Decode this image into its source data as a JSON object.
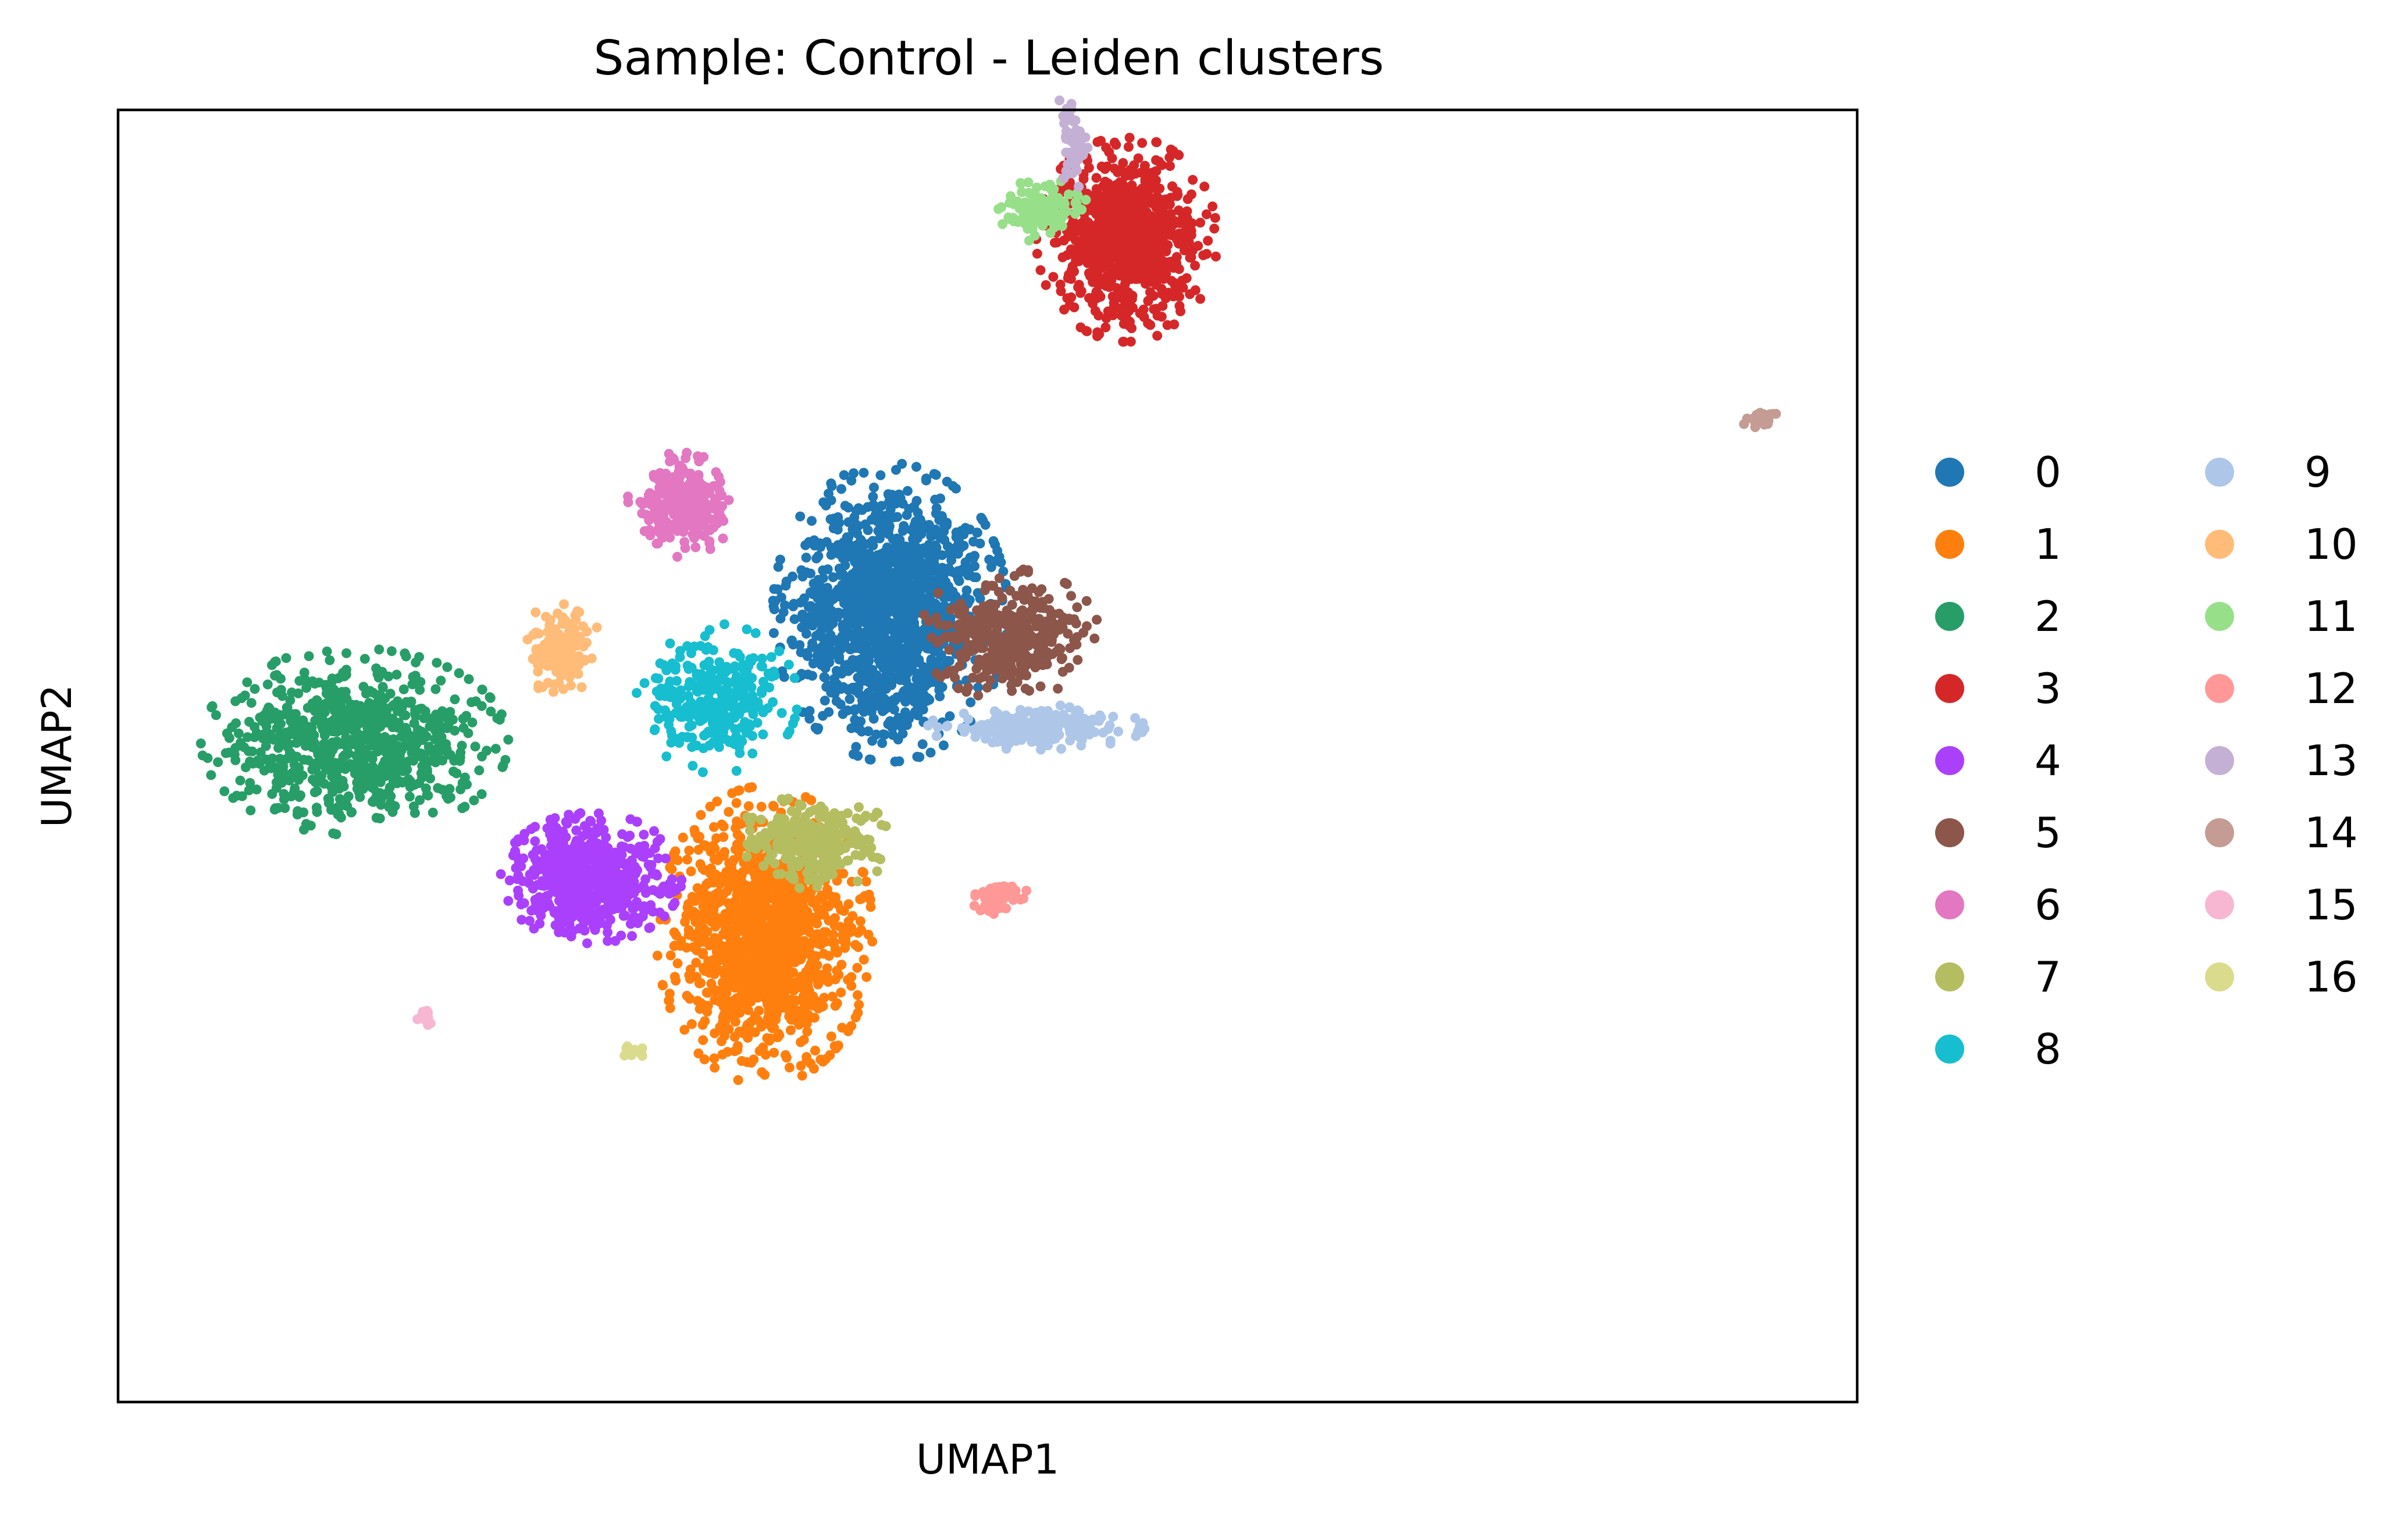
{
  "chart_data": {
    "type": "scatter",
    "title": "Sample: Control - Leiden clusters",
    "xlabel": "UMAP1",
    "ylabel": "UMAP2",
    "xlim": [
      -5,
      20
    ],
    "ylim": [
      -3,
      15
    ],
    "grid": false,
    "axis_ticks": false,
    "legend": {
      "placement": "right",
      "columns": 2
    },
    "series": [
      {
        "name": "0",
        "color": "#1f77b4",
        "x_center": 6.1,
        "y_center": 8.0,
        "spread": [
          0.65,
          0.8
        ],
        "points": 1400
      },
      {
        "name": "1",
        "color": "#ff7f0e",
        "x_center": 4.3,
        "y_center": 3.5,
        "spread": [
          0.6,
          0.8
        ],
        "points": 1250
      },
      {
        "name": "2",
        "color": "#279e68",
        "x_center": -1.6,
        "y_center": 6.2,
        "spread": [
          0.85,
          0.5
        ],
        "points": 800
      },
      {
        "name": "3",
        "color": "#d62728",
        "x_center": 9.5,
        "y_center": 13.2,
        "spread": [
          0.5,
          0.55
        ],
        "points": 850
      },
      {
        "name": "4",
        "color": "#aa40fc",
        "x_center": 1.8,
        "y_center": 4.3,
        "spread": [
          0.5,
          0.35
        ],
        "points": 650
      },
      {
        "name": "5",
        "color": "#8c564b",
        "x_center": 7.8,
        "y_center": 7.7,
        "spread": [
          0.5,
          0.35
        ],
        "points": 380
      },
      {
        "name": "6",
        "color": "#e377c2",
        "x_center": 3.1,
        "y_center": 9.5,
        "spread": [
          0.3,
          0.28
        ],
        "points": 250
      },
      {
        "name": "7",
        "color": "#b5bd61",
        "x_center": 5.0,
        "y_center": 4.8,
        "spread": [
          0.45,
          0.25
        ],
        "points": 260
      },
      {
        "name": "8",
        "color": "#17becf",
        "x_center": 3.6,
        "y_center": 6.8,
        "spread": [
          0.45,
          0.4
        ],
        "points": 320
      },
      {
        "name": "9",
        "color": "#aec7e8",
        "x_center": 8.2,
        "y_center": 6.4,
        "spread": [
          0.6,
          0.12
        ],
        "points": 220
      },
      {
        "name": "10",
        "color": "#ffbb78",
        "x_center": 1.4,
        "y_center": 7.5,
        "spread": [
          0.2,
          0.3
        ],
        "points": 130
      },
      {
        "name": "11",
        "color": "#98df8a",
        "x_center": 8.3,
        "y_center": 13.6,
        "spread": [
          0.25,
          0.17
        ],
        "points": 110
      },
      {
        "name": "12",
        "color": "#ff9896",
        "x_center": 7.6,
        "y_center": 4.0,
        "spread": [
          0.2,
          0.1
        ],
        "points": 50
      },
      {
        "name": "13",
        "color": "#c5b0d5",
        "x_center": 8.7,
        "y_center": 14.6,
        "spread": [
          0.1,
          0.3
        ],
        "points": 45
      },
      {
        "name": "14",
        "color": "#c49c94",
        "x_center": 18.6,
        "y_center": 10.7,
        "spread": [
          0.1,
          0.06
        ],
        "points": 25
      },
      {
        "name": "15",
        "color": "#f7b6d2",
        "x_center": -0.6,
        "y_center": 2.4,
        "spread": [
          0.06,
          0.06
        ],
        "points": 14
      },
      {
        "name": "16",
        "color": "#dbdb8d",
        "x_center": 2.4,
        "y_center": 1.9,
        "spread": [
          0.08,
          0.04
        ],
        "points": 14
      }
    ]
  }
}
